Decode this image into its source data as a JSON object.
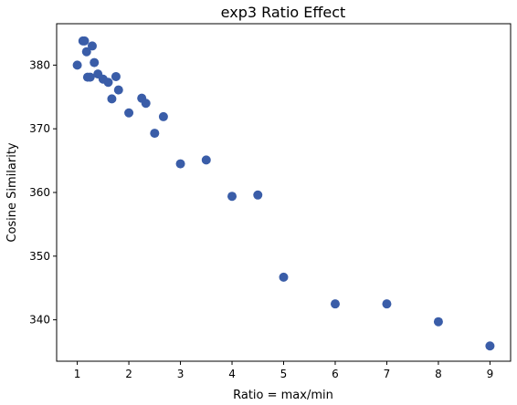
{
  "chart_data": {
    "type": "scatter",
    "title": "exp3 Ratio Effect",
    "xlabel": "Ratio = max/min",
    "ylabel": "Cosine Similarity",
    "xlim": [
      0.6,
      9.4
    ],
    "ylim": [
      333.5,
      386.5
    ],
    "xticks": [
      1,
      2,
      3,
      4,
      5,
      6,
      7,
      8,
      9
    ],
    "yticks": [
      340,
      350,
      360,
      370,
      380
    ],
    "grid": false,
    "marker_color": "#3a5da8",
    "points": [
      {
        "x": 1.0,
        "y": 380.0
      },
      {
        "x": 1.11,
        "y": 383.8
      },
      {
        "x": 1.14,
        "y": 383.8
      },
      {
        "x": 1.18,
        "y": 382.1
      },
      {
        "x": 1.2,
        "y": 378.1
      },
      {
        "x": 1.25,
        "y": 378.1
      },
      {
        "x": 1.29,
        "y": 383.0
      },
      {
        "x": 1.33,
        "y": 380.4
      },
      {
        "x": 1.4,
        "y": 378.6
      },
      {
        "x": 1.5,
        "y": 377.8
      },
      {
        "x": 1.6,
        "y": 377.3
      },
      {
        "x": 1.67,
        "y": 374.7
      },
      {
        "x": 1.75,
        "y": 378.2
      },
      {
        "x": 1.8,
        "y": 376.1
      },
      {
        "x": 2.0,
        "y": 372.5
      },
      {
        "x": 2.25,
        "y": 374.8
      },
      {
        "x": 2.33,
        "y": 374.0
      },
      {
        "x": 2.5,
        "y": 369.3
      },
      {
        "x": 2.67,
        "y": 371.9
      },
      {
        "x": 3.0,
        "y": 364.5
      },
      {
        "x": 3.5,
        "y": 365.1
      },
      {
        "x": 4.0,
        "y": 359.4
      },
      {
        "x": 4.5,
        "y": 359.6
      },
      {
        "x": 5.0,
        "y": 346.7
      },
      {
        "x": 6.0,
        "y": 342.5
      },
      {
        "x": 7.0,
        "y": 342.5
      },
      {
        "x": 8.0,
        "y": 339.7
      },
      {
        "x": 9.0,
        "y": 335.9
      }
    ]
  }
}
